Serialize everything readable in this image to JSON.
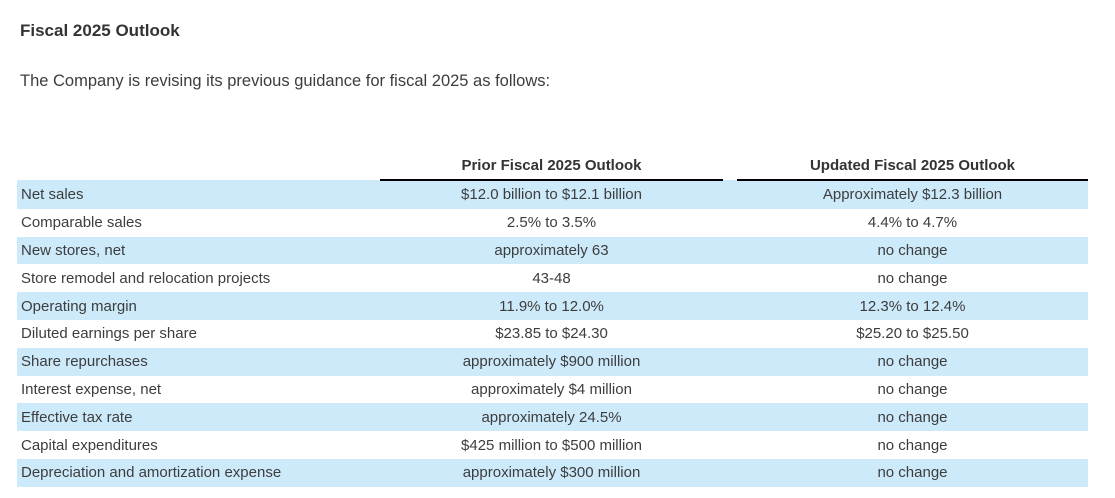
{
  "page": {
    "title": "Fiscal 2025 Outlook",
    "intro": "The Company is revising its previous guidance for fiscal 2025 as follows:"
  },
  "table": {
    "columns": {
      "metric": "",
      "prior": "Prior Fiscal 2025 Outlook",
      "updated": "Updated Fiscal 2025 Outlook"
    },
    "rows": [
      {
        "label": "Net sales",
        "prior": "$12.0 billion to $12.1 billion",
        "updated": "Approximately $12.3 billion"
      },
      {
        "label": "Comparable sales",
        "prior": "2.5% to 3.5%",
        "updated": "4.4% to 4.7%"
      },
      {
        "label": "New stores, net",
        "prior": "approximately 63",
        "updated": "no change"
      },
      {
        "label": "Store remodel and relocation projects",
        "prior": "43-48",
        "updated": "no change"
      },
      {
        "label": "Operating margin",
        "prior": "11.9% to 12.0%",
        "updated": "12.3% to 12.4%"
      },
      {
        "label": "Diluted earnings per share",
        "prior": "$23.85 to $24.30",
        "updated": "$25.20 to $25.50"
      },
      {
        "label": "Share repurchases",
        "prior": "approximately $900 million",
        "updated": "no change"
      },
      {
        "label": "Interest expense, net",
        "prior": "approximately $4 million",
        "updated": "no change"
      },
      {
        "label": "Effective tax rate",
        "prior": "approximately 24.5%",
        "updated": "no change"
      },
      {
        "label": "Capital expenditures",
        "prior": "$425 million to $500 million",
        "updated": "no change"
      },
      {
        "label": "Depreciation and amortization expense",
        "prior": "approximately $300 million",
        "updated": "no change"
      }
    ],
    "colors": {
      "stripe": "#cdeafb",
      "header_underline": "#000000",
      "text": "#3d3d3d"
    }
  }
}
